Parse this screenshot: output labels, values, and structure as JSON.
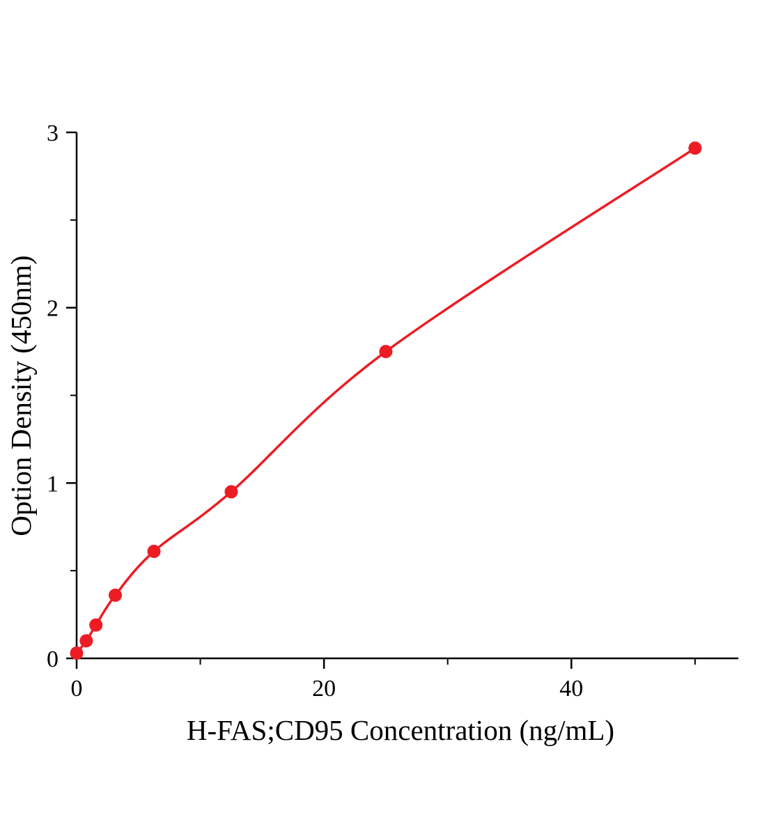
{
  "chart_data": {
    "type": "scatter",
    "title": "",
    "xlabel": "H-FAS;CD95 Concentration (ng/mL)",
    "ylabel": "Option Density (450nm)",
    "x": [
      0,
      0.78,
      1.56,
      3.125,
      6.25,
      12.5,
      25,
      50
    ],
    "y": [
      0.03,
      0.1,
      0.19,
      0.36,
      0.61,
      0.95,
      1.75,
      2.91
    ],
    "xlim": [
      0,
      53.5
    ],
    "ylim": [
      0,
      3
    ],
    "x_major_ticks": [
      0,
      20,
      40
    ],
    "x_minor_ticks": [
      10,
      30,
      50
    ],
    "x_tick_labels": [
      "0",
      "20",
      "40"
    ],
    "y_major_ticks": [
      0,
      1,
      2,
      3
    ],
    "y_minor_ticks": [
      0.5,
      1.5,
      2.5
    ],
    "y_tick_labels": [
      "0",
      "1",
      "2",
      "3"
    ],
    "grid": false,
    "legend": null,
    "curve_style": "smooth",
    "line_color": "#ed1c24",
    "marker_color": "#ed1c24",
    "axis_color": "#000000"
  }
}
